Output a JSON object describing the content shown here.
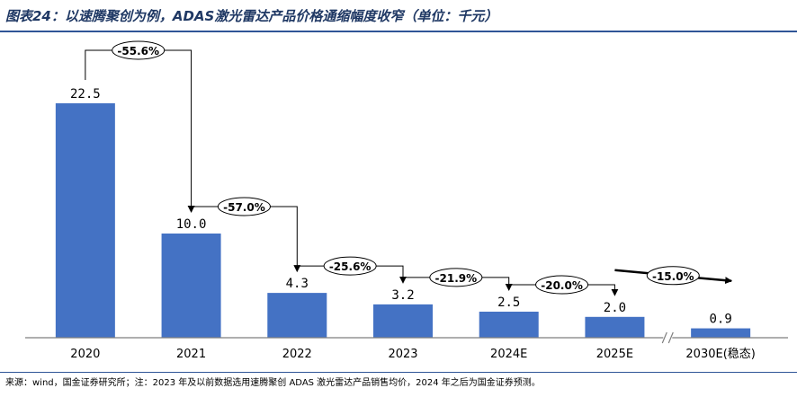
{
  "title": "图表24：以速腾聚创为例，ADAS激光雷达产品价格通缩幅度收窄（单位：千元）",
  "footnote": "来源：wind，国金证券研究所；注：2023 年及以前数据选用速腾聚创 ADAS 激光雷达产品销售均价，2024 年之后为国金证券预测。",
  "colors": {
    "bar": "#4472c4",
    "title": "#1f3864",
    "rule": "#2f5597"
  },
  "chart_data": {
    "type": "bar",
    "categories": [
      "2020",
      "2021",
      "2022",
      "2023",
      "2024E",
      "2025E",
      "2030E(稳态)"
    ],
    "values": [
      22.5,
      10.0,
      4.3,
      3.2,
      2.5,
      2.0,
      0.9
    ],
    "value_labels": [
      "22.5",
      "10.0",
      "4.3",
      "3.2",
      "2.5",
      "2.0",
      "0.9"
    ],
    "ylim": [
      0,
      25
    ],
    "grid": false,
    "axis_break_before": "2030E(稳态)",
    "annotations": [
      {
        "from": "2020",
        "to": "2021",
        "text": "-55.6%"
      },
      {
        "from": "2021",
        "to": "2022",
        "text": "-57.0%"
      },
      {
        "from": "2022",
        "to": "2023",
        "text": "-25.6%"
      },
      {
        "from": "2023",
        "to": "2024E",
        "text": "-21.9%"
      },
      {
        "from": "2024E",
        "to": "2025E",
        "text": "-20.0%"
      },
      {
        "from": "2025E",
        "to": "2030E(稳态)",
        "text": "-15.0%"
      }
    ]
  }
}
